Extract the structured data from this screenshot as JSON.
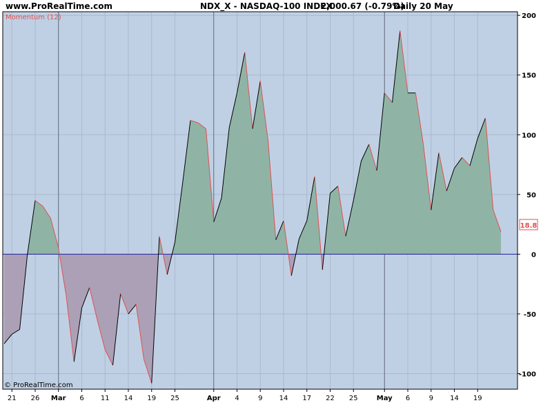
{
  "header": {
    "site": "www.ProRealTime.com",
    "instrument": "NDX_X - NASDAQ-100 INDEX",
    "quote": "2,000.67 (-0.79%)",
    "period": "Daily  20 May"
  },
  "footer": {
    "copyright": "© ProRealTime.com"
  },
  "indicator": {
    "label": "Momentum (12)",
    "last_value": "18.8"
  },
  "colors": {
    "plot_bg": "#c0d0e4",
    "grid": "#aab8cc",
    "zero_line": "#1c1c9c",
    "pos_fill": "#8fb4a6",
    "neg_fill": "#aca0b6",
    "up_segment": "#000000",
    "down_segment": "#e05050",
    "month_line": "#606878",
    "label_color": "#e05050"
  },
  "chart_data": {
    "type": "area",
    "title": "Momentum (12)",
    "ylim": [
      -113,
      203
    ],
    "y_ticks": [
      200,
      150,
      100,
      50,
      0,
      -50,
      -100
    ],
    "x_ticks": [
      {
        "label": "21",
        "i": 1,
        "month": false
      },
      {
        "label": "26",
        "i": 4,
        "month": false
      },
      {
        "label": "Mar",
        "i": 7,
        "month": true
      },
      {
        "label": "6",
        "i": 10,
        "month": false
      },
      {
        "label": "11",
        "i": 13,
        "month": false
      },
      {
        "label": "14",
        "i": 16,
        "month": false
      },
      {
        "label": "19",
        "i": 19,
        "month": false
      },
      {
        "label": "25",
        "i": 22,
        "month": false
      },
      {
        "label": "Apr",
        "i": 27,
        "month": true
      },
      {
        "label": "4",
        "i": 30,
        "month": false
      },
      {
        "label": "9",
        "i": 33,
        "month": false
      },
      {
        "label": "14",
        "i": 36,
        "month": false
      },
      {
        "label": "17",
        "i": 39,
        "month": false
      },
      {
        "label": "22",
        "i": 42,
        "month": false
      },
      {
        "label": "25",
        "i": 45,
        "month": false
      },
      {
        "label": "May",
        "i": 49,
        "month": true
      },
      {
        "label": "6",
        "i": 52,
        "month": false
      },
      {
        "label": "9",
        "i": 55,
        "month": false
      },
      {
        "label": "14",
        "i": 58,
        "month": false
      },
      {
        "label": "19",
        "i": 61,
        "month": false
      }
    ],
    "values": [
      -75,
      -67,
      -63,
      0,
      45,
      40,
      30,
      5,
      -35,
      -90,
      -45,
      -28,
      -55,
      -80,
      -93,
      -33,
      -50,
      -42,
      -88,
      -108,
      15,
      -17,
      10,
      60,
      112,
      110,
      105,
      27,
      47,
      106,
      135,
      169,
      105,
      145,
      95,
      12,
      28,
      -18,
      13,
      28,
      65,
      -13,
      51,
      57,
      15,
      45,
      78,
      92,
      70,
      135,
      127,
      187,
      135,
      135,
      92,
      37,
      85,
      53,
      72,
      81,
      74,
      97,
      114,
      37,
      18.8
    ],
    "grid": true
  }
}
